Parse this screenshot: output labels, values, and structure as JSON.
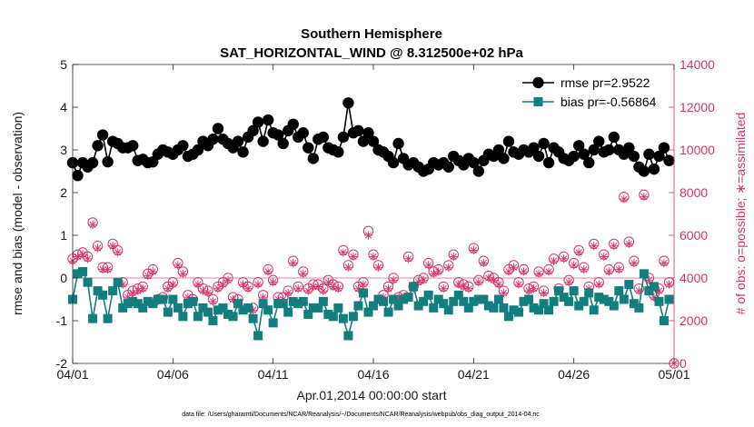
{
  "figure": {
    "title_line1": "Southern Hemisphere",
    "title_line2": "SAT_HORIZONTAL_WIND @ 8.312500e+02 hPa",
    "xlabel": "Apr.01,2014 00:00:00 start",
    "ylabel_left": "rmse and bias (model - observation)",
    "ylabel_right": "# of obs: o=possible; ∗=assimilated",
    "footnote": "data file: /Users/gharamti/Documents/NCAR/Reanalysis/~/Documents/NCAR/Reanalysis/webpub/obs_diag_output_2014-04.nc",
    "colors": {
      "rmse": "#000000",
      "bias": "#137e7e",
      "obs_count": "#d6336c",
      "zero_line": "#d6336c"
    }
  },
  "chart_data": {
    "type": "line",
    "x_unit": "day of April 2014 (6-hourly samples)",
    "x": [
      1.0,
      1.25,
      1.5,
      1.75,
      2.0,
      2.25,
      2.5,
      2.75,
      3.0,
      3.25,
      3.5,
      3.75,
      4.0,
      4.25,
      4.5,
      4.75,
      5.0,
      5.25,
      5.5,
      5.75,
      6.0,
      6.25,
      6.5,
      6.75,
      7.0,
      7.25,
      7.5,
      7.75,
      8.0,
      8.25,
      8.5,
      8.75,
      9.0,
      9.25,
      9.5,
      9.75,
      10.0,
      10.25,
      10.5,
      10.75,
      11.0,
      11.25,
      11.5,
      11.75,
      12.0,
      12.25,
      12.5,
      12.75,
      13.0,
      13.25,
      13.5,
      13.75,
      14.0,
      14.25,
      14.5,
      14.75,
      15.0,
      15.25,
      15.5,
      15.75,
      16.0,
      16.25,
      16.5,
      16.75,
      17.0,
      17.25,
      17.5,
      17.75,
      18.0,
      18.25,
      18.5,
      18.75,
      19.0,
      19.25,
      19.5,
      19.75,
      20.0,
      20.25,
      20.5,
      20.75,
      21.0,
      21.25,
      21.5,
      21.75,
      22.0,
      22.25,
      22.5,
      22.75,
      23.0,
      23.25,
      23.5,
      23.75,
      24.0,
      24.25,
      24.5,
      24.75,
      25.0,
      25.25,
      25.5,
      25.75,
      26.0,
      26.25,
      26.5,
      26.75,
      27.0,
      27.25,
      27.5,
      27.75,
      28.0,
      28.25,
      28.5,
      28.75,
      29.0,
      29.25,
      29.5,
      29.75,
      30.0,
      30.25,
      30.5,
      30.75
    ],
    "xlim": [
      1,
      31
    ],
    "xticks": [
      1,
      6,
      11,
      16,
      21,
      26,
      31
    ],
    "xtick_labels": [
      "04/01",
      "04/06",
      "04/11",
      "04/16",
      "04/21",
      "04/26",
      "05/01"
    ],
    "ylim_left": [
      -2,
      5
    ],
    "yticks_left": [
      -2,
      -1,
      0,
      1,
      2,
      3,
      4,
      5
    ],
    "ylim_right": [
      0,
      14000
    ],
    "yticks_right": [
      0,
      2000,
      4000,
      6000,
      8000,
      10000,
      12000,
      14000
    ],
    "zero_line": 0,
    "grid": false,
    "legend_position": "top-right",
    "series": [
      {
        "name": "rmse pr=2.9522",
        "axis": "left",
        "marker": "filled-circle",
        "values": [
          2.7,
          2.4,
          2.7,
          2.6,
          2.7,
          3.1,
          3.35,
          2.72,
          3.2,
          3.15,
          3.05,
          3.05,
          3.1,
          2.75,
          2.78,
          2.7,
          2.72,
          2.9,
          3.0,
          2.95,
          2.9,
          3.0,
          3.1,
          2.85,
          2.9,
          3.0,
          3.2,
          3.1,
          3.25,
          3.5,
          3.25,
          3.15,
          3.05,
          3.2,
          2.95,
          3.3,
          3.45,
          3.65,
          3.2,
          3.7,
          3.4,
          3.35,
          3.15,
          3.45,
          3.6,
          3.3,
          3.4,
          3.05,
          2.8,
          3.25,
          3.3,
          3.05,
          3.0,
          2.95,
          3.3,
          4.1,
          3.4,
          3.45,
          3.2,
          3.4,
          3.2,
          3.0,
          2.95,
          2.85,
          2.7,
          3.15,
          2.8,
          2.65,
          2.7,
          2.6,
          2.5,
          2.55,
          2.7,
          2.65,
          2.7,
          2.6,
          2.85,
          2.75,
          2.65,
          2.8,
          2.7,
          2.5,
          2.75,
          2.9,
          2.85,
          3.0,
          2.8,
          3.2,
          2.95,
          2.9,
          3.0,
          2.95,
          3.05,
          2.85,
          3.15,
          2.7,
          3.05,
          2.95,
          2.8,
          2.75,
          2.85,
          3.1,
          2.9,
          2.7,
          3.0,
          3.2,
          2.95,
          3.0,
          3.3,
          3.0,
          2.9,
          3.05,
          2.85,
          2.6,
          2.5,
          2.9,
          2.55,
          2.85,
          3.05,
          2.75
        ]
      },
      {
        "name": "bias pr=-0.56864",
        "axis": "left",
        "marker": "filled-square",
        "values": [
          -0.5,
          0.1,
          0.15,
          -0.1,
          -0.95,
          -0.3,
          -0.4,
          -0.95,
          -0.3,
          -0.1,
          -0.7,
          -0.6,
          -0.55,
          -0.6,
          -0.7,
          -0.55,
          -0.6,
          -0.5,
          -0.5,
          -0.8,
          -0.5,
          -0.7,
          -0.9,
          -0.6,
          -0.55,
          -0.9,
          -0.7,
          -0.8,
          -1.0,
          -0.75,
          -0.7,
          -0.85,
          -0.9,
          -0.6,
          -0.75,
          -0.7,
          -0.95,
          -1.35,
          -0.6,
          -0.75,
          -1.05,
          -0.6,
          -0.6,
          -0.8,
          -0.55,
          -0.6,
          -0.55,
          -0.85,
          -0.7,
          -0.7,
          -0.55,
          -0.85,
          -0.9,
          -0.7,
          -0.95,
          -1.35,
          -0.9,
          -0.65,
          -0.35,
          -0.8,
          -0.65,
          -0.5,
          -0.55,
          -0.8,
          -0.5,
          -0.65,
          -0.5,
          -0.45,
          -0.2,
          -0.65,
          -0.55,
          -0.4,
          -0.7,
          -0.5,
          -0.6,
          -0.75,
          -0.55,
          -0.4,
          -0.55,
          -0.7,
          -0.55,
          -0.5,
          -0.5,
          -0.65,
          -0.7,
          -0.5,
          -0.7,
          -0.9,
          -0.75,
          -0.8,
          -0.55,
          -0.5,
          -0.7,
          -0.75,
          -0.6,
          -0.75,
          -0.55,
          -0.3,
          -0.45,
          -0.55,
          -0.3,
          -0.65,
          -0.55,
          -0.35,
          -0.75,
          -0.45,
          -0.5,
          -0.55,
          -0.65,
          -0.3,
          -0.5,
          -0.15,
          -0.6,
          -0.7,
          0.1,
          -0.3,
          -0.2,
          -0.55,
          -1.0,
          -0.5
        ]
      },
      {
        "name": "# of obs possible",
        "axis": "right",
        "marker": "open-circle",
        "values": [
          4900,
          5100,
          5200,
          5000,
          6600,
          5500,
          4500,
          4500,
          5600,
          5300,
          3800,
          3200,
          3400,
          3500,
          3600,
          4200,
          4400,
          3000,
          3100,
          3600,
          3800,
          4700,
          4300,
          3200,
          3000,
          3800,
          3500,
          3400,
          3000,
          3600,
          3800,
          4000,
          3100,
          3000,
          3800,
          3600,
          2600,
          3800,
          3200,
          4400,
          3900,
          3100,
          3100,
          3400,
          4800,
          3600,
          4300,
          3500,
          3700,
          3700,
          3500,
          3900,
          3700,
          3600,
          5300,
          4600,
          5100,
          3600,
          3800,
          6200,
          5100,
          4600,
          3200,
          3600,
          4000,
          3100,
          3200,
          5000,
          3600,
          3900,
          4000,
          4700,
          4300,
          4400,
          3600,
          4600,
          5100,
          3800,
          3700,
          3600,
          5400,
          3900,
          4800,
          4100,
          4000,
          3800,
          3400,
          4400,
          4600,
          3800,
          4400,
          3500,
          3600,
          4300,
          3400,
          4400,
          4900,
          3500,
          5000,
          3900,
          4700,
          5300,
          4500,
          3600,
          5600,
          3800,
          5100,
          4400,
          5600,
          4500,
          7800,
          5700,
          4800,
          3500,
          7900,
          4000,
          3200,
          3500,
          4800,
          3800
        ]
      },
      {
        "name": "# of obs assimilated",
        "axis": "right",
        "marker": "asterisk",
        "values": [
          4800,
          5000,
          5100,
          4900,
          6500,
          5400,
          4400,
          4400,
          5500,
          5200,
          3700,
          3100,
          3300,
          3400,
          3500,
          4100,
          4300,
          2900,
          3000,
          3500,
          3700,
          4600,
          4200,
          3100,
          2900,
          3700,
          3400,
          3300,
          2900,
          3500,
          3700,
          3900,
          3000,
          2900,
          3700,
          3500,
          2500,
          3700,
          3100,
          4300,
          3800,
          3000,
          3000,
          3300,
          4700,
          3500,
          4200,
          3400,
          3600,
          3600,
          3400,
          3800,
          3600,
          3500,
          5200,
          4500,
          5000,
          3500,
          3700,
          6000,
          5000,
          4500,
          3100,
          3500,
          3900,
          3000,
          3100,
          4900,
          3500,
          3800,
          3900,
          4600,
          4200,
          4300,
          3500,
          4500,
          5000,
          3700,
          3600,
          3500,
          5300,
          3800,
          4700,
          4000,
          3900,
          3700,
          3300,
          4300,
          4500,
          3700,
          4300,
          3400,
          3500,
          4200,
          3300,
          4300,
          4800,
          3400,
          4900,
          3800,
          4600,
          5200,
          4400,
          3500,
          5500,
          3700,
          5000,
          4300,
          5500,
          4400,
          7700,
          5600,
          4700,
          3400,
          7800,
          3900,
          3100,
          3400,
          4700,
          3700
        ]
      }
    ],
    "final_point": {
      "x": 31,
      "possible": 0,
      "assimilated": 0
    }
  }
}
